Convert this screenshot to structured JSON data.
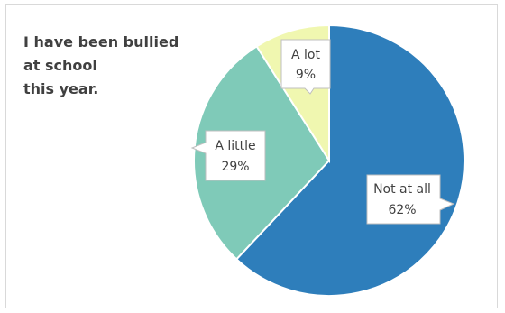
{
  "chart_data": {
    "type": "pie",
    "title_lines": [
      "I have been bullied",
      "at school",
      "this year."
    ],
    "slices": [
      {
        "name": "Not at all",
        "value": 62,
        "value_label": "62%",
        "color": "#2e7ebb"
      },
      {
        "name": "A little",
        "value": 29,
        "value_label": "29%",
        "color": "#7fcab8"
      },
      {
        "name": "A lot",
        "value": 9,
        "value_label": "9%",
        "color": "#f0f7b0"
      }
    ],
    "start": "12 o'clock, clockwise",
    "legend": "none"
  }
}
